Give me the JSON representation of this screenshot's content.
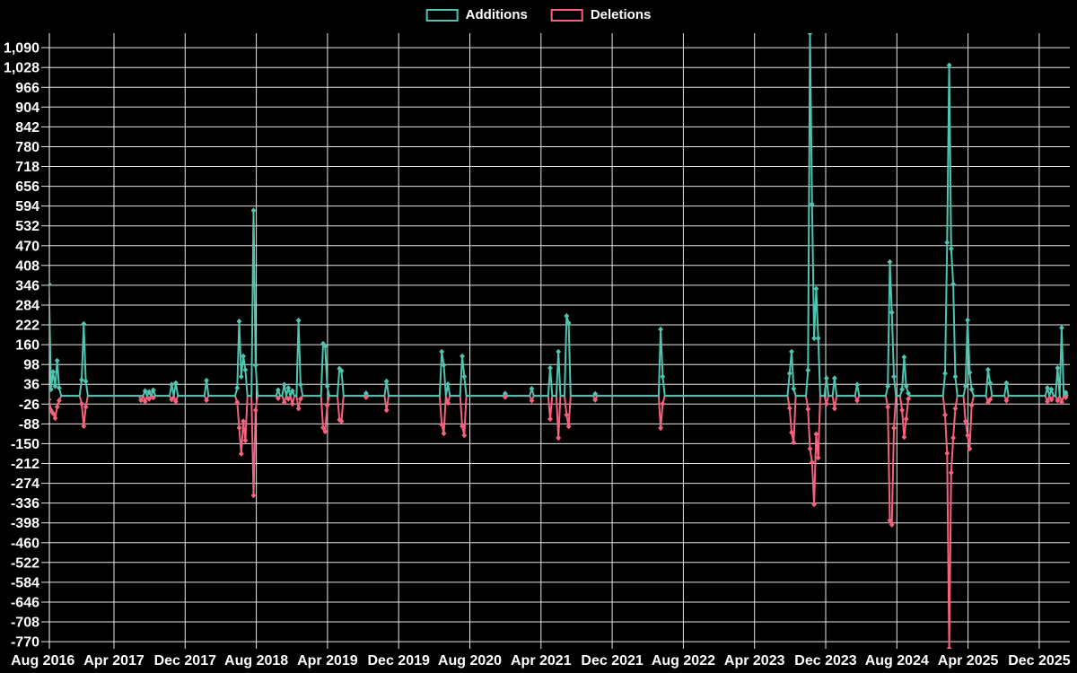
{
  "legend": {
    "items": [
      {
        "label": "Additions",
        "color": "#4fc4b1"
      },
      {
        "label": "Deletions",
        "color": "#f4627e"
      }
    ]
  },
  "colors": {
    "background": "#000000",
    "grid": "#ffffff",
    "text": "#ffffff",
    "additions": "#4fc4b1",
    "deletions": "#f4627e"
  },
  "chart_data": {
    "type": "line",
    "title": "",
    "legend_position": "top-center",
    "grid": true,
    "x_axis": {
      "tick_labels": [
        "Aug 2016",
        "Apr 2017",
        "Dec 2017",
        "Aug 2018",
        "Apr 2019",
        "Dec 2019",
        "Aug 2020",
        "Apr 2021",
        "Dec 2021",
        "Aug 2022",
        "Apr 2023",
        "Dec 2023",
        "Aug 2024",
        "Apr 2025",
        "Dec 2025"
      ],
      "tick_interval": "8 months",
      "start": "Aug 2016",
      "end": "Dec 2025"
    },
    "y_axis": {
      "tick_labels": [
        "1,090",
        "1,028",
        "966",
        "904",
        "842",
        "780",
        "718",
        "656",
        "594",
        "532",
        "470",
        "408",
        "346",
        "284",
        "222",
        "160",
        "98",
        "36",
        "-26",
        "-88",
        "-150",
        "-212",
        "-274",
        "-336",
        "-398",
        "-460",
        "-522",
        "-584",
        "-646",
        "-708",
        "-770"
      ],
      "tick_top": 1090,
      "tick_step": -62,
      "ylim": [
        -792,
        1140
      ]
    },
    "series": [
      {
        "name": "Additions",
        "color": "#4fc4b1",
        "sign": "positive"
      },
      {
        "name": "Deletions",
        "color": "#f4627e",
        "sign": "negative"
      }
    ],
    "x_unit": "week index from Aug 2016",
    "weeks_total": 502,
    "note": "points = [week, additions, deletions]; all unlisted weeks are 0; values beyond ylim are clipped at plot edge",
    "points": [
      [
        3,
        350,
        -12
      ],
      [
        4,
        20,
        -45
      ],
      [
        5,
        75,
        -55
      ],
      [
        6,
        30,
        -70
      ],
      [
        7,
        110,
        -35
      ],
      [
        8,
        25,
        -15
      ],
      [
        19,
        50,
        -25
      ],
      [
        20,
        225,
        -95
      ],
      [
        21,
        45,
        -35
      ],
      [
        48,
        0,
        -14
      ],
      [
        50,
        15,
        -18
      ],
      [
        52,
        12,
        -10
      ],
      [
        54,
        18,
        -6
      ],
      [
        63,
        35,
        -12
      ],
      [
        65,
        40,
        -18
      ],
      [
        80,
        48,
        -14
      ],
      [
        95,
        25,
        -20
      ],
      [
        96,
        233,
        -100
      ],
      [
        97,
        60,
        -182
      ],
      [
        98,
        124,
        -80
      ],
      [
        99,
        81,
        -140
      ],
      [
        103,
        580,
        -312
      ],
      [
        104,
        95,
        -45
      ],
      [
        115,
        18,
        -8
      ],
      [
        118,
        35,
        -20
      ],
      [
        120,
        25,
        -10
      ],
      [
        122,
        15,
        -25
      ],
      [
        125,
        236,
        -40
      ],
      [
        126,
        35,
        -10
      ],
      [
        137,
        163,
        -100
      ],
      [
        138,
        155,
        -112
      ],
      [
        139,
        30,
        -30
      ],
      [
        145,
        85,
        -75
      ],
      [
        146,
        78,
        -80
      ],
      [
        158,
        8,
        -5
      ],
      [
        168,
        45,
        -45
      ],
      [
        195,
        138,
        -90
      ],
      [
        196,
        96,
        -118
      ],
      [
        198,
        36,
        -22
      ],
      [
        205,
        124,
        -95
      ],
      [
        206,
        60,
        -124
      ],
      [
        226,
        7,
        -4
      ],
      [
        239,
        22,
        -15
      ],
      [
        248,
        87,
        -73
      ],
      [
        252,
        138,
        -132
      ],
      [
        256,
        250,
        -60
      ],
      [
        257,
        228,
        -96
      ],
      [
        270,
        6,
        -13
      ],
      [
        302,
        208,
        -101
      ],
      [
        303,
        60,
        -25
      ],
      [
        365,
        70,
        -39
      ],
      [
        366,
        138,
        -115
      ],
      [
        367,
        22,
        -146
      ],
      [
        374,
        80,
        -42
      ],
      [
        375,
        1140,
        -166
      ],
      [
        376,
        600,
        -208
      ],
      [
        377,
        180,
        -340
      ],
      [
        378,
        335,
        -120
      ],
      [
        379,
        180,
        -194
      ],
      [
        383,
        55,
        -25
      ],
      [
        387,
        55,
        -40
      ],
      [
        398,
        35,
        -15
      ],
      [
        413,
        30,
        -35
      ],
      [
        414,
        419,
        -390
      ],
      [
        415,
        261,
        -404
      ],
      [
        416,
        60,
        -101
      ],
      [
        420,
        20,
        -45
      ],
      [
        421,
        121,
        -129
      ],
      [
        422,
        30,
        -73
      ],
      [
        423,
        8,
        -10
      ],
      [
        441,
        70,
        -60
      ],
      [
        442,
        480,
        -180
      ],
      [
        443,
        1035,
        -792
      ],
      [
        444,
        460,
        -241
      ],
      [
        445,
        350,
        -132
      ],
      [
        446,
        60,
        -40
      ],
      [
        451,
        30,
        -80
      ],
      [
        452,
        237,
        -124
      ],
      [
        453,
        73,
        -166
      ],
      [
        454,
        20,
        -30
      ],
      [
        462,
        82,
        -20
      ],
      [
        463,
        40,
        -12
      ],
      [
        471,
        40,
        -15
      ],
      [
        491,
        25,
        -18
      ],
      [
        493,
        20,
        -12
      ],
      [
        496,
        87,
        -15
      ],
      [
        498,
        213,
        -20
      ],
      [
        500,
        10,
        -5
      ]
    ]
  }
}
